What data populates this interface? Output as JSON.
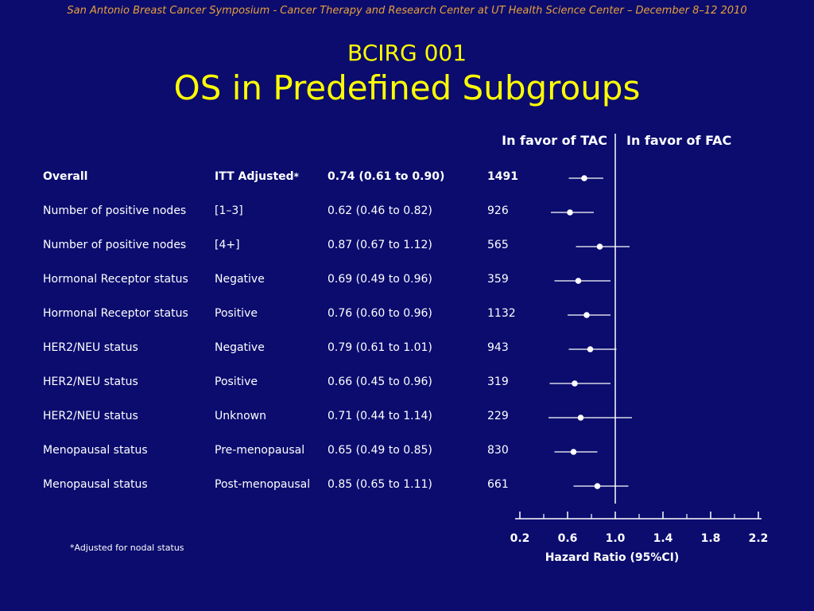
{
  "header_note": "San Antonio Breast Cancer Symposium - Cancer Therapy and Research Center at UT Health Science Center – December 8–12 2010",
  "title_line1": "BCIRG 001",
  "title_line2": "OS in Predefined Subgroups",
  "favor_left": "In favor of TAC",
  "favor_right": "In favor of FAC",
  "footnote": "*Adjusted for nodal status",
  "colors": {
    "background": "#0b0c6e",
    "title": "#ffff00",
    "header_note": "#e8a13a",
    "text": "#ffffff"
  },
  "chart_data": {
    "type": "forest",
    "xlabel": "Hazard Ratio (95%CI)",
    "xlim": [
      0.2,
      2.2
    ],
    "ticks": [
      0.2,
      0.6,
      1.0,
      1.4,
      1.8,
      2.2
    ],
    "tick_labels": [
      "0.2",
      "0.6",
      "1.0",
      "1.4",
      "1.8",
      "2.2"
    ],
    "minor_ticks": [
      0.4,
      0.8,
      1.2,
      1.6,
      2.0
    ],
    "reference_line": 1.0,
    "rows": [
      {
        "subgroup": "Overall",
        "category": "ITT Adjusted",
        "marker": "*",
        "hr_text": "0.74 (0.61 to 0.90)",
        "n": "1491",
        "hr": 0.74,
        "lo": 0.61,
        "hi": 0.9,
        "bold": true
      },
      {
        "subgroup": "Number of positive nodes",
        "category": "[1–3]",
        "marker": "",
        "hr_text": "0.62 (0.46 to 0.82)",
        "n": "926",
        "hr": 0.62,
        "lo": 0.46,
        "hi": 0.82,
        "bold": false
      },
      {
        "subgroup": "Number of positive nodes",
        "category": "[4+]",
        "marker": "",
        "hr_text": "0.87 (0.67 to 1.12)",
        "n": "565",
        "hr": 0.87,
        "lo": 0.67,
        "hi": 1.12,
        "bold": false
      },
      {
        "subgroup": "Hormonal Receptor status",
        "category": "Negative",
        "marker": "",
        "hr_text": "0.69 (0.49 to 0.96)",
        "n": "359",
        "hr": 0.69,
        "lo": 0.49,
        "hi": 0.96,
        "bold": false
      },
      {
        "subgroup": "Hormonal Receptor status",
        "category": "Positive",
        "marker": "",
        "hr_text": "0.76 (0.60 to 0.96)",
        "n": "1132",
        "hr": 0.76,
        "lo": 0.6,
        "hi": 0.96,
        "bold": false
      },
      {
        "subgroup": "HER2/NEU status",
        "category": "Negative",
        "marker": "",
        "hr_text": "0.79 (0.61 to 1.01)",
        "n": "943",
        "hr": 0.79,
        "lo": 0.61,
        "hi": 1.01,
        "bold": false
      },
      {
        "subgroup": "HER2/NEU status",
        "category": "Positive",
        "marker": "",
        "hr_text": "0.66 (0.45 to 0.96)",
        "n": "319",
        "hr": 0.66,
        "lo": 0.45,
        "hi": 0.96,
        "bold": false
      },
      {
        "subgroup": "HER2/NEU status",
        "category": "Unknown",
        "marker": "",
        "hr_text": "0.71 (0.44 to 1.14)",
        "n": "229",
        "hr": 0.71,
        "lo": 0.44,
        "hi": 1.14,
        "bold": false
      },
      {
        "subgroup": "Menopausal status",
        "category": "Pre-menopausal",
        "marker": "",
        "hr_text": "0.65 (0.49 to 0.85)",
        "n": "830",
        "hr": 0.65,
        "lo": 0.49,
        "hi": 0.85,
        "bold": false
      },
      {
        "subgroup": "Menopausal status",
        "category": "Post-menopausal",
        "marker": "",
        "hr_text": "0.85 (0.65 to 1.11)",
        "n": "661",
        "hr": 0.85,
        "lo": 0.65,
        "hi": 1.11,
        "bold": false
      }
    ]
  }
}
